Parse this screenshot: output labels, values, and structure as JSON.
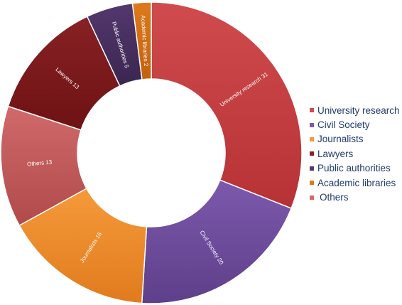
{
  "chart_data": {
    "type": "pie",
    "donut": true,
    "series": [
      {
        "name": "University research",
        "value": 31,
        "slice_label": "University research 31",
        "color": "#b63234",
        "color_light": "#cf4b4d"
      },
      {
        "name": "Civil Society",
        "value": 20,
        "slice_label": "Civil Society 20",
        "color": "#5e3f8a",
        "color_light": "#7d59ad"
      },
      {
        "name": "Journalists",
        "value": 16,
        "slice_label": "Journalists 16",
        "color": "#e07b1e",
        "color_light": "#f59a3a"
      },
      {
        "name": "Lawyers",
        "value": 13,
        "slice_label": "Lawyers 13",
        "color": "#6e1214",
        "color_light": "#872124"
      },
      {
        "name": "Public authorities",
        "value": 5,
        "slice_label": "Public authorities 5",
        "color": "#3b2550",
        "color_light": "#53386e"
      },
      {
        "name": "Academic libraries",
        "value": 2,
        "slice_label": "Academic libraries 2",
        "color": "#c4620d",
        "color_light": "#dd7a1c"
      },
      {
        "name": "Others",
        "value": 13,
        "slice_label": "Others 13",
        "color": "#b14a4a",
        "color_light": "#d06a6a"
      }
    ],
    "legend_position": "right"
  }
}
